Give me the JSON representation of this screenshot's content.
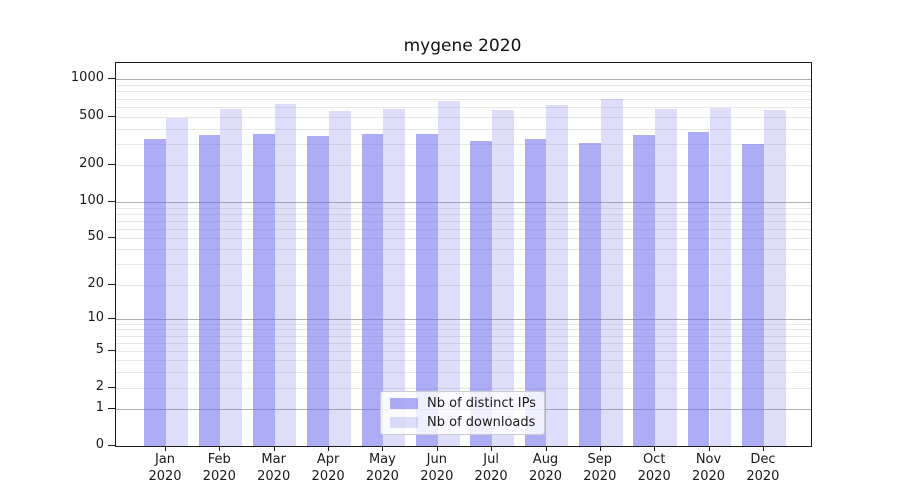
{
  "figure": {
    "title": "mygene 2020",
    "background": "#ffffff"
  },
  "chart_data": {
    "type": "bar",
    "title": "mygene 2020",
    "xlabel": "",
    "ylabel": "",
    "yscale": "symlog",
    "ylim": [
      0,
      1340
    ],
    "grid": "horizontal major gridlines at powers of 10, faint minor gridlines at 2-9 mantissas",
    "legend_position": "inside lower-center-left",
    "y_ticks": [
      1000,
      500,
      200,
      100,
      50,
      20,
      10,
      5,
      2,
      1,
      0
    ],
    "categories": [
      "Jan",
      "Feb",
      "Mar",
      "Apr",
      "May",
      "Jun",
      "Jul",
      "Aug",
      "Sep",
      "Oct",
      "Nov",
      "Dec"
    ],
    "category_year": "2020",
    "series": [
      {
        "name": "Nb of distinct IPs",
        "color": "#6969ed",
        "alpha": 0.55,
        "rendered_color": "#acacf5",
        "values": [
          330,
          355,
          365,
          345,
          360,
          360,
          315,
          330,
          305,
          355,
          375,
          300
        ]
      },
      {
        "name": "Nb of downloads",
        "color": "#6969ed",
        "alpha": 0.22,
        "rendered_color": "#dedefb",
        "values": [
          490,
          580,
          630,
          560,
          575,
          670,
          565,
          620,
          700,
          580,
          595,
          570
        ]
      }
    ],
    "colors": {
      "grid_major": "#b0b0b0",
      "grid_minor": "#e7e7e7",
      "spine": "#1a1a1a",
      "text": "#1a1a1a"
    }
  }
}
